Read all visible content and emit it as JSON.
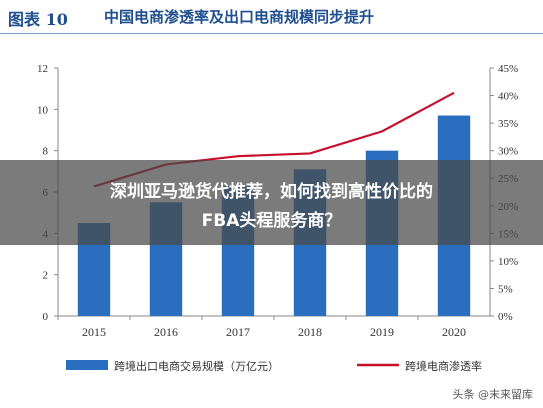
{
  "header": {
    "figure_label": "图表 10",
    "title": "中国电商渗透率及出口电商规模同步提升"
  },
  "overlay": {
    "line1": "深圳亚马逊货代推荐，如何找到高性价比的",
    "line2": "FBA头程服务商？"
  },
  "watermark": "头条 @末来留库",
  "colors": {
    "bar": "#2a6fbf",
    "line": "#c8102e",
    "title": "#1f4f8f",
    "axis_text": "#333333"
  },
  "chart_data": {
    "type": "bar",
    "title": "中国电商渗透率及出口电商规模同步提升",
    "categories": [
      "2015",
      "2016",
      "2017",
      "2018",
      "2019",
      "2020"
    ],
    "series": [
      {
        "name": "跨境出口电商交易规模（万亿元）",
        "type": "bar",
        "axis": "left",
        "values": [
          4.5,
          5.5,
          6.3,
          7.1,
          8.0,
          9.7
        ]
      },
      {
        "name": "跨境电商渗透率",
        "type": "line",
        "axis": "right",
        "values": [
          23.5,
          27.5,
          29.0,
          29.5,
          33.5,
          40.5
        ]
      }
    ],
    "left_axis": {
      "ylim": [
        0,
        12
      ],
      "ticks": [
        "0",
        "2",
        "4",
        "6",
        "8",
        "10",
        "12"
      ]
    },
    "right_axis": {
      "ylim": [
        0,
        45
      ],
      "ticks": [
        "0%",
        "5%",
        "10%",
        "15%",
        "20%",
        "25%",
        "30%",
        "35%",
        "40%",
        "45%"
      ]
    },
    "legend_position": "bottom",
    "grid": false
  }
}
